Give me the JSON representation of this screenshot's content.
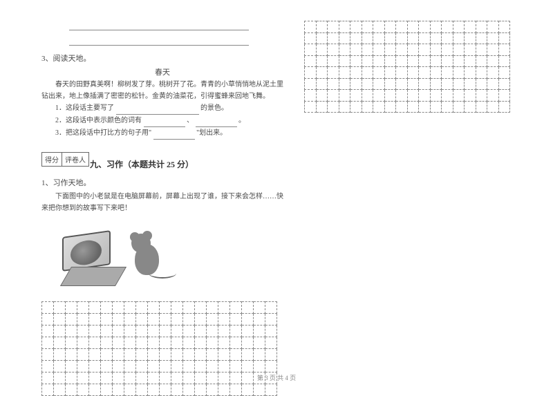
{
  "leftColumn": {
    "q3": {
      "number": "3、阅读天地。",
      "title": "春天",
      "paragraph": "春天的田野真美啊！柳树发了芽。桃树开了花。青青的小草悄悄地从泥土里钻出来，地上像插满了密密的松针。金黄的油菜花，引得蜜蜂来回地飞舞。",
      "sub1_prefix": "1．这段话主要写了",
      "sub1_suffix": "的景色。",
      "sub2_prefix": "2．这段话中表示颜色的词有",
      "sub2_sep": "、",
      "sub2_end": "。",
      "sub3_prefix": "3．把这段话中打比方的句子用\"",
      "sub3_suffix": "\"划出来。"
    },
    "scoreBox": {
      "cell1": "得分",
      "cell2": "评卷人"
    },
    "section9": {
      "title": "九、习作（本题共计 25 分）",
      "q1": "1、习作天地。",
      "desc": "下面图中的小老鼠是在电脑屏幕前，屏幕上出现了谁，接下来会怎样……快来把你想到的故事写下来吧！"
    },
    "grid": {
      "cols": 20,
      "rows": 8,
      "border_color": "#888"
    }
  },
  "rightColumn": {
    "grid": {
      "cols": 18,
      "rows": 8,
      "border_color": "#888"
    }
  },
  "footer": "第 3 页 共 4 页",
  "colors": {
    "text": "#4a4a4a",
    "border": "#888888",
    "background": "#ffffff"
  }
}
